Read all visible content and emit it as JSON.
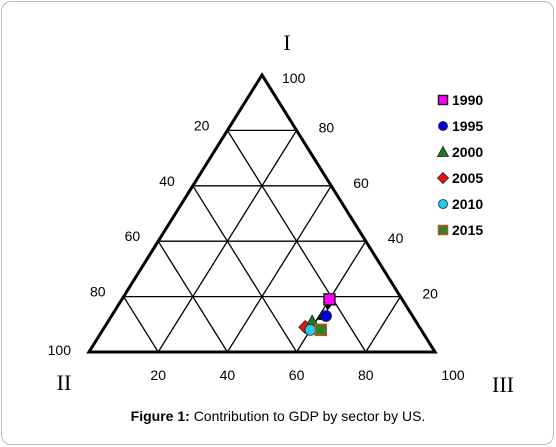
{
  "caption": {
    "label": "Figure 1:",
    "text": "Contribution to GDP by sector by US."
  },
  "chart_data": {
    "type": "ternary-scatter",
    "corner_labels": {
      "top": "I",
      "bottom_left": "II",
      "bottom_right": "III"
    },
    "axes": {
      "I": {
        "ticks": [
          "20",
          "40",
          "60",
          "80",
          "100"
        ]
      },
      "II": {
        "ticks": [
          "20",
          "40",
          "60",
          "80",
          "100"
        ]
      },
      "III": {
        "ticks": [
          "20",
          "40",
          "60",
          "80",
          "100"
        ]
      }
    },
    "grid": true,
    "grid_step": 20,
    "legend_position": "right",
    "series": [
      {
        "name": "1990",
        "marker": "square",
        "color": "#ff00ff",
        "I": 19,
        "II": 21,
        "III": 60
      },
      {
        "name": "1995",
        "marker": "circle",
        "color": "#0000dd",
        "I": 13,
        "II": 25,
        "III": 62
      },
      {
        "name": "2000",
        "marker": "triangle",
        "color": "#1f7a1f",
        "I": 11,
        "II": 30,
        "III": 59
      },
      {
        "name": "2005",
        "marker": "diamond",
        "color": "#ee1111",
        "I": 9,
        "II": 33,
        "III": 58
      },
      {
        "name": "2010",
        "marker": "circle",
        "color": "#22ccee",
        "I": 8,
        "II": 32,
        "III": 60
      },
      {
        "name": "2015",
        "marker": "square",
        "color": "#2f7f2f",
        "border": "#b05a1e",
        "I": 8,
        "II": 29,
        "III": 63
      }
    ],
    "arrows": [
      {
        "from": "1990",
        "to": "1995"
      },
      {
        "from": "1995",
        "to": "2000"
      }
    ]
  }
}
